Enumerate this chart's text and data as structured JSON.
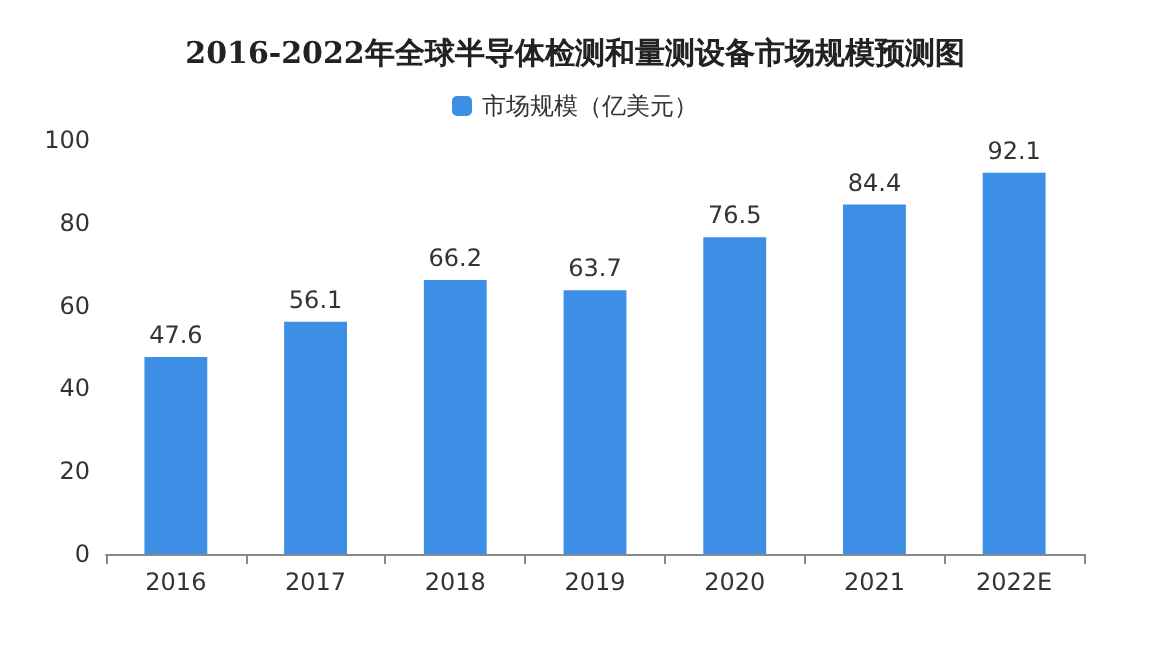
{
  "chart_data": {
    "type": "bar",
    "title": "2016-2022年全球半导体检测和量测设备市场规模预测图",
    "categories": [
      "2016",
      "2017",
      "2018",
      "2019",
      "2020",
      "2021",
      "2022E"
    ],
    "series": [
      {
        "name": "市场规模（亿美元）",
        "color": "#3d8fe6",
        "values": [
          47.6,
          56.1,
          66.2,
          63.7,
          76.5,
          84.4,
          92.1
        ]
      }
    ],
    "ylim": [
      0,
      100
    ],
    "yticks": [
      0,
      20,
      40,
      60,
      80,
      100
    ],
    "grid": false,
    "legend": "top",
    "data_labels": true
  }
}
